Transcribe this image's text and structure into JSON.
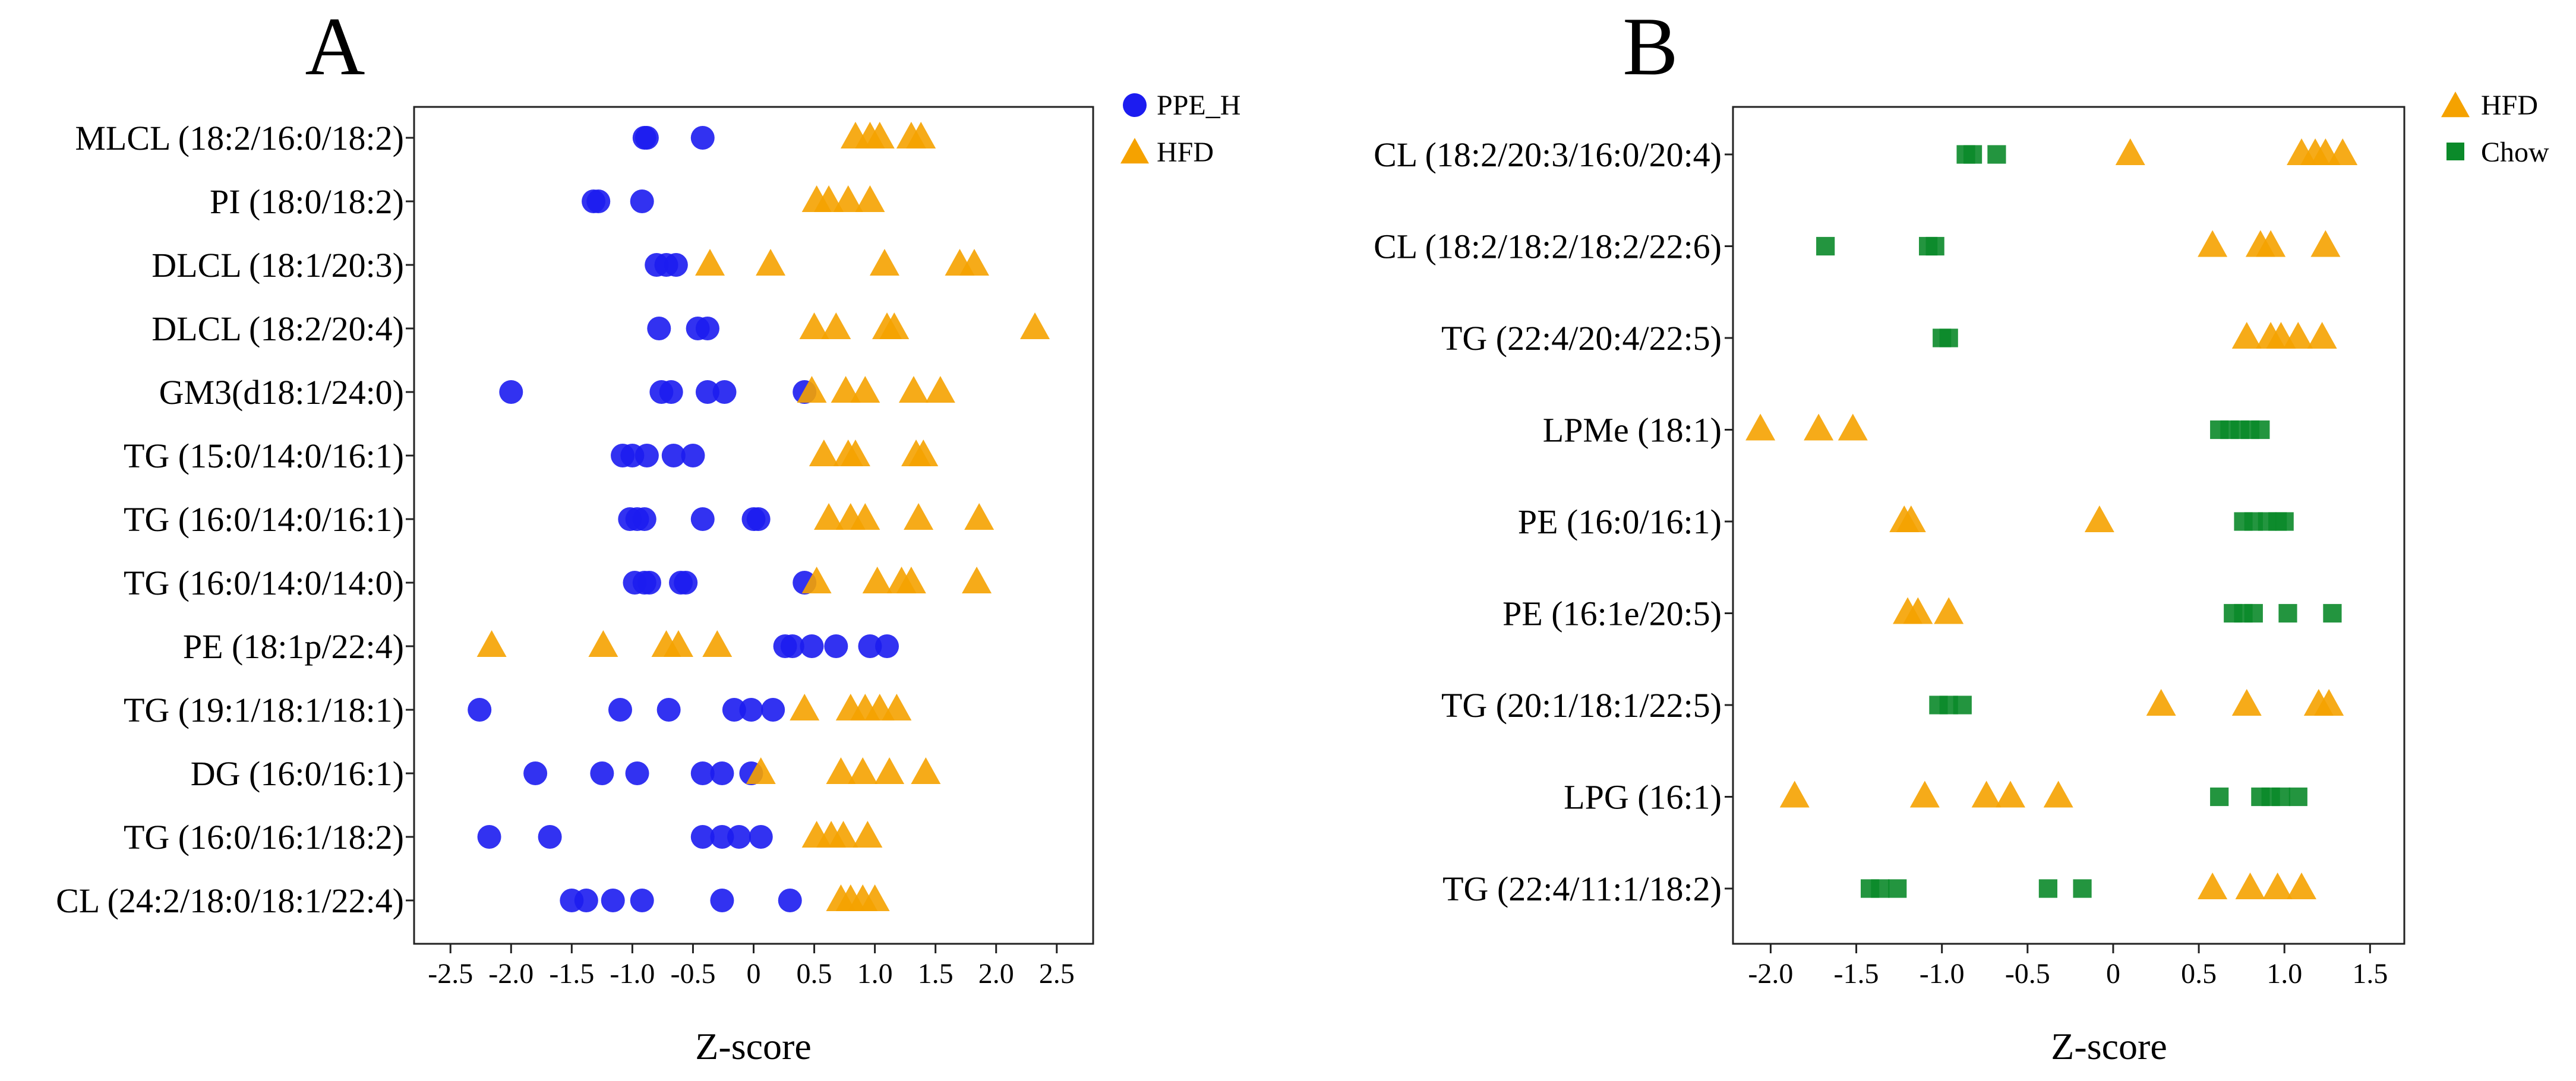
{
  "colors": {
    "ppe_h": "#1c1cf0",
    "hfd": "#f5a200",
    "chow": "#0b8a2a"
  },
  "chart_data": [
    {
      "type": "scatter",
      "panel": "A",
      "xlabel": "Z-score",
      "xlim": [
        -2.8,
        2.8
      ],
      "xticks": [
        "-2.5",
        "-2.0",
        "-1.5",
        "-1.0",
        "-0.5",
        "0",
        "0.5",
        "1.0",
        "1.5",
        "2.0",
        "2.5"
      ],
      "xtick_values": [
        -2.5,
        -2.0,
        -1.5,
        -1.0,
        -0.5,
        0,
        0.5,
        1.0,
        1.5,
        2.0,
        2.5
      ],
      "categories": [
        "MLCL (18:2/16:0/18:2)",
        "PI (18:0/18:2)",
        "DLCL (18:1/20:3)",
        "DLCL (18:2/20:4)",
        "GM3(d18:1/24:0)",
        "TG (15:0/14:0/16:1)",
        "TG (16:0/14:0/16:1)",
        "TG (16:0/14:0/14:0)",
        "PE (18:1p/22:4)",
        "TG (19:1/18:1/18:1)",
        "DG (16:0/16:1)",
        "TG (16:0/16:1/18:2)",
        "CL (24:2/18:0/18:1/22:4)"
      ],
      "legend": [
        {
          "label": "PPE_H",
          "marker": "circle",
          "color_key": "ppe_h"
        },
        {
          "label": "HFD",
          "marker": "triangle",
          "color_key": "hfd"
        }
      ],
      "series": [
        {
          "name": "PPE_H",
          "marker": "circle",
          "color_key": "ppe_h",
          "values": [
            [
              -0.9,
              -0.88,
              -0.42
            ],
            [
              -1.32,
              -1.28,
              -0.92
            ],
            [
              -0.8,
              -0.72,
              -0.64
            ],
            [
              -0.78,
              -0.46,
              -0.38
            ],
            [
              -2.0,
              -0.76,
              -0.68,
              -0.38,
              -0.24,
              0.42
            ],
            [
              -1.08,
              -1.0,
              -0.88,
              -0.66,
              -0.5
            ],
            [
              -1.02,
              -0.96,
              -0.9,
              -0.42,
              0.0,
              0.04
            ],
            [
              -0.98,
              -0.9,
              -0.86,
              -0.6,
              -0.56,
              0.42
            ],
            [
              0.26,
              0.32,
              0.48,
              0.68,
              0.96,
              1.1
            ],
            [
              -2.26,
              -1.1,
              -0.7,
              -0.16,
              -0.02,
              0.16
            ],
            [
              -1.8,
              -1.25,
              -0.96,
              -0.42,
              -0.26,
              -0.02
            ],
            [
              -2.18,
              -1.68,
              -0.42,
              -0.26,
              -0.12,
              0.06
            ],
            [
              -1.5,
              -1.38,
              -1.16,
              -0.92,
              -0.26,
              0.3
            ]
          ]
        },
        {
          "name": "HFD",
          "marker": "triangle",
          "color_key": "hfd",
          "values": [
            [
              0.84,
              0.96,
              1.04,
              1.3,
              1.38
            ],
            [
              0.52,
              0.62,
              0.78,
              0.96
            ],
            [
              -0.36,
              0.14,
              1.08,
              1.7,
              1.82
            ],
            [
              0.5,
              0.68,
              1.1,
              1.16,
              2.32
            ],
            [
              0.48,
              0.76,
              0.92,
              1.32,
              1.54
            ],
            [
              0.58,
              0.78,
              0.84,
              1.34,
              1.4
            ],
            [
              0.62,
              0.8,
              0.92,
              1.36,
              1.86
            ],
            [
              0.52,
              1.02,
              1.22,
              1.3,
              1.84
            ],
            [
              -2.16,
              -1.24,
              -0.72,
              -0.62,
              -0.3
            ],
            [
              0.42,
              0.8,
              0.92,
              1.04,
              1.18
            ],
            [
              0.06,
              0.72,
              0.9,
              1.12,
              1.42
            ],
            [
              0.52,
              0.64,
              0.74,
              0.94
            ],
            [
              0.72,
              0.8,
              0.9,
              1.0
            ]
          ]
        }
      ]
    },
    {
      "type": "scatter",
      "panel": "B",
      "xlabel": "Z-score",
      "xlim": [
        -2.22,
        1.7
      ],
      "xticks": [
        "-2.0",
        "-1.5",
        "-1.0",
        "-0.5",
        "0",
        "0.5",
        "1.0",
        "1.5"
      ],
      "xtick_values": [
        -2.0,
        -1.5,
        -1.0,
        -0.5,
        0,
        0.5,
        1.0,
        1.5
      ],
      "categories": [
        "CL (18:2/20:3/16:0/20:4)",
        "CL (18:2/18:2/18:2/22:6)",
        "TG (22:4/20:4/22:5)",
        "LPMe (18:1)",
        "PE (16:0/16:1)",
        "PE (16:1e/20:5)",
        "TG (20:1/18:1/22:5)",
        "LPG (16:1)",
        "TG (22:4/11:1/18:2)"
      ],
      "legend": [
        {
          "label": "HFD",
          "marker": "triangle",
          "color_key": "hfd"
        },
        {
          "label": "Chow",
          "marker": "square",
          "color_key": "chow"
        }
      ],
      "series": [
        {
          "name": "HFD",
          "marker": "triangle",
          "color_key": "hfd",
          "values": [
            [
              0.1,
              1.1,
              1.18,
              1.24,
              1.34
            ],
            [
              0.58,
              0.86,
              0.92,
              1.24
            ],
            [
              0.78,
              0.92,
              0.98,
              1.08,
              1.22
            ],
            [
              -2.06,
              -1.72,
              -1.52
            ],
            [
              -1.22,
              -1.18,
              -0.08
            ],
            [
              -1.2,
              -1.14,
              -0.96
            ],
            [
              0.28,
              0.78,
              1.2,
              1.26
            ],
            [
              -1.86,
              -1.1,
              -0.74,
              -0.6,
              -0.32
            ],
            [
              0.58,
              0.8,
              0.96,
              1.1
            ]
          ]
        },
        {
          "name": "Chow",
          "marker": "square",
          "color_key": "chow",
          "values": [
            [
              -0.86,
              -0.82,
              -0.68
            ],
            [
              -1.68,
              -1.08,
              -1.04
            ],
            [
              -1.0,
              -0.96
            ],
            [
              0.62,
              0.68,
              0.74,
              0.8,
              0.86
            ],
            [
              0.76,
              0.82,
              0.9,
              0.96,
              1.0
            ],
            [
              0.7,
              0.76,
              0.82,
              1.02,
              1.28
            ],
            [
              -1.02,
              -0.96,
              -0.88
            ],
            [
              0.62,
              0.86,
              0.92,
              0.98,
              1.08
            ],
            [
              -1.42,
              -1.36,
              -1.26,
              -0.38,
              -0.18
            ]
          ]
        }
      ]
    }
  ]
}
